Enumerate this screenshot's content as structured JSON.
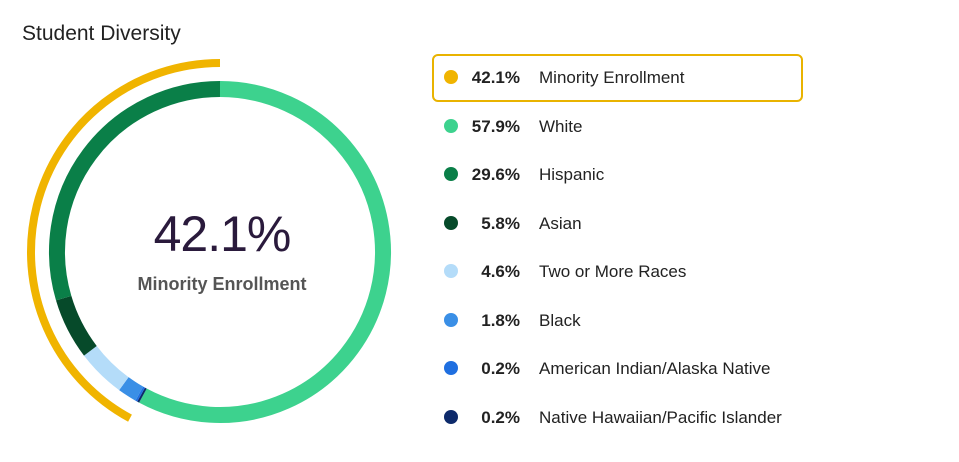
{
  "title": "Student Diversity",
  "center": {
    "value": "42.1%",
    "label": "Minority Enrollment"
  },
  "colors": {
    "highlight_border": "#e9b300",
    "minority_arc": "#f0b400"
  },
  "chart_data": {
    "type": "pie",
    "title": "Student Diversity",
    "highlight": {
      "name": "Minority Enrollment",
      "value": 42.1,
      "label": "42.1%",
      "color": "#f0b400"
    },
    "slices": [
      {
        "name": "White",
        "value": 57.9,
        "label": "57.9%",
        "color": "#3dd28e"
      },
      {
        "name": "Native Hawaiian/Pacific Islander",
        "value": 0.2,
        "label": "0.2%",
        "color": "#0d2a6b"
      },
      {
        "name": "American Indian/Alaska Native",
        "value": 0.2,
        "label": "0.2%",
        "color": "#1f6fe0"
      },
      {
        "name": "Black",
        "value": 1.8,
        "label": "1.8%",
        "color": "#3a8fe6"
      },
      {
        "name": "Two or More Races",
        "value": 4.6,
        "label": "4.6%",
        "color": "#b4dcf9"
      },
      {
        "name": "Asian",
        "value": 5.8,
        "label": "5.8%",
        "color": "#064a2a"
      },
      {
        "name": "Hispanic",
        "value": 29.6,
        "label": "29.6%",
        "color": "#0a7f48"
      }
    ]
  },
  "legend": [
    {
      "label": "Minority Enrollment",
      "value": "42.1%",
      "color": "#f0b400",
      "highlight": true
    },
    {
      "label": "White",
      "value": "57.9%",
      "color": "#3dd28e"
    },
    {
      "label": "Hispanic",
      "value": "29.6%",
      "color": "#0a7f48"
    },
    {
      "label": "Asian",
      "value": "5.8%",
      "color": "#064a2a"
    },
    {
      "label": "Two or More Races",
      "value": "4.6%",
      "color": "#b4dcf9"
    },
    {
      "label": "Black",
      "value": "1.8%",
      "color": "#3a8fe6"
    },
    {
      "label": "American Indian/Alaska Native",
      "value": "0.2%",
      "color": "#1f6fe0"
    },
    {
      "label": "Native Hawaiian/Pacific Islander",
      "value": "0.2%",
      "color": "#0d2a6b"
    }
  ]
}
